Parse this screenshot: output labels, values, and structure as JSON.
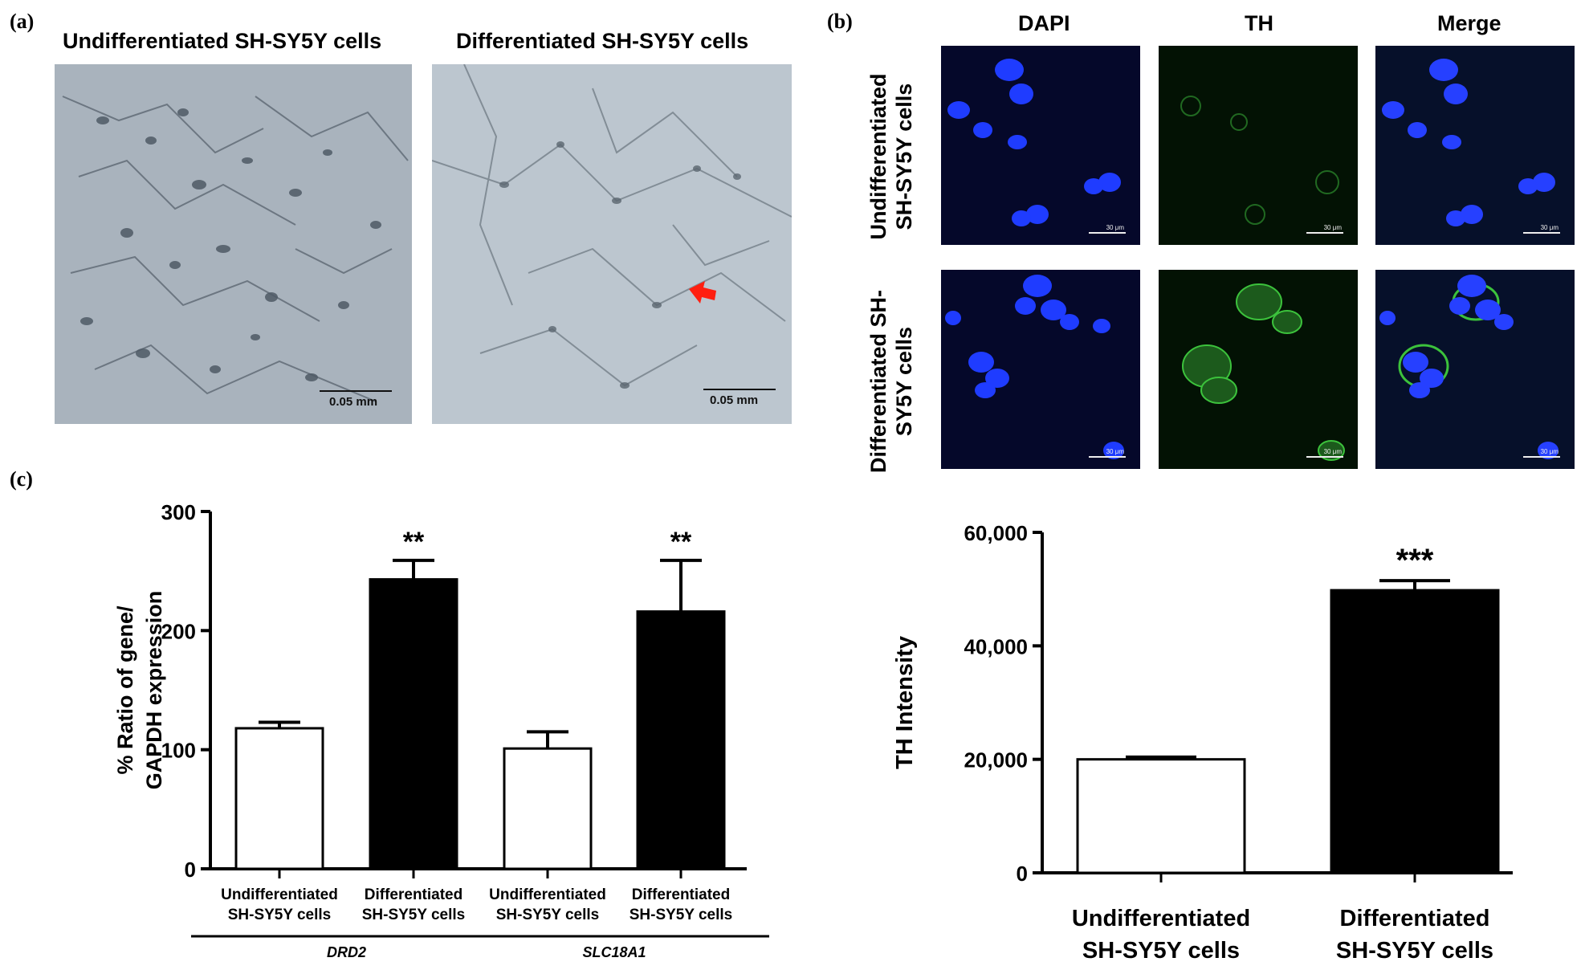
{
  "panels": {
    "a": {
      "label": "(a)",
      "left_title": "Undifferentiated SH-SY5Y cells",
      "right_title": "Differentiated SH-SY5Y cells",
      "scale_left": "0.05 mm",
      "scale_right": "0.05 mm"
    },
    "b": {
      "label": "(b)",
      "col_dapi": "DAPI",
      "col_th": "TH",
      "col_merge": "Merge",
      "row1": "Undifferentiated SH-SY5Y cells",
      "row2": "Differentiated SH-SY5Y cells",
      "scale": "30 μm"
    },
    "c": {
      "label": "(c)"
    }
  },
  "colors": {
    "dapi": "#1f3cff",
    "th": "#3cc23c",
    "bar_undiff": "#ffffff",
    "bar_diff": "#000000"
  },
  "chart_data": [
    {
      "type": "bar",
      "ylabel_line1": "% Ratio of gene/",
      "ylabel_line2": "GAPDH expression",
      "ylim": [
        0,
        300
      ],
      "yticks": [
        "0",
        "100",
        "200",
        "300"
      ],
      "categories": [
        {
          "line1": "Undifferentiated",
          "line2": "SH-SY5Y cells"
        },
        {
          "line1": "Differentiated",
          "line2": "SH-SY5Y cells"
        },
        {
          "line1": "Undifferentiated",
          "line2": "SH-SY5Y cells"
        },
        {
          "line1": "Differentiated",
          "line2": "SH-SY5Y cells"
        }
      ],
      "values": [
        118,
        243,
        101,
        216
      ],
      "errors": [
        5,
        16,
        14,
        43
      ],
      "fills": [
        "white",
        "black",
        "white",
        "black"
      ],
      "significance": [
        "",
        "**",
        "",
        "**"
      ],
      "groups": [
        {
          "label": "DRD2",
          "members": [
            0,
            1
          ]
        },
        {
          "label": "SLC18A1",
          "members": [
            2,
            3
          ]
        }
      ]
    },
    {
      "type": "bar",
      "ylabel": "TH Intensity",
      "ylim": [
        0,
        60000
      ],
      "yticks": [
        "0",
        "20,000",
        "40,000",
        "60,000"
      ],
      "categories": [
        {
          "line1": "Undifferentiated",
          "line2": "SH-SY5Y cells"
        },
        {
          "line1": "Differentiated",
          "line2": "SH-SY5Y cells"
        }
      ],
      "values": [
        20000,
        49800
      ],
      "errors": [
        400,
        1700
      ],
      "fills": [
        "white",
        "black"
      ],
      "significance": [
        "",
        "***"
      ]
    }
  ]
}
